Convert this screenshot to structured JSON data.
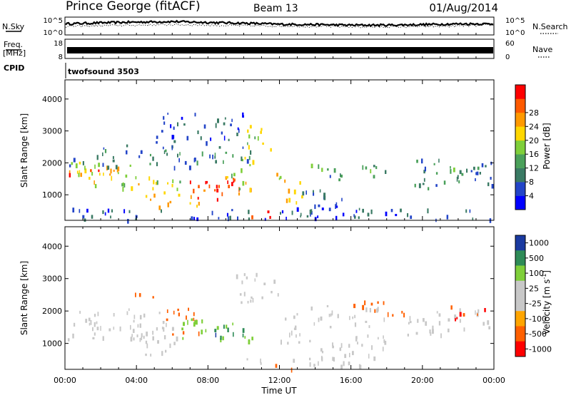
{
  "header": {
    "station": "Prince George (fitACF)",
    "beam": "Beam 13",
    "date": "01/Aug/2014"
  },
  "noise_panel": {
    "left_label": "N.Sky",
    "right_label": "N.Search",
    "tick_top": "10^5",
    "tick_bottom": "10^0",
    "right_tick_top": "10^5",
    "right_tick_bottom": "10^0"
  },
  "freq_panel": {
    "left_label_1": "Freq.",
    "left_label_2": "[MHz]",
    "tick_top": "18",
    "tick_bottom": "8",
    "right_label": "Nave",
    "right_tick_top": "60",
    "right_tick_bottom": "0"
  },
  "cpid_panel": {
    "label": "CPID",
    "program": "twofsound 3503"
  },
  "colors": {
    "power": [
      "#0000ff",
      "#2345c8",
      "#3a7a64",
      "#4aa05a",
      "#7fcf3a",
      "#ffd700",
      "#ff9900",
      "#ff5a00",
      "#ff0000"
    ],
    "velocity": [
      "#ff0000",
      "#ff6000",
      "#ffa500",
      "#c8c8c8",
      "#c8c8c8",
      "#7fcf3a",
      "#2e8b57",
      "#1a3aa0"
    ]
  },
  "chart_data": [
    {
      "type": "heatmap",
      "title": "",
      "xlabel": "Time UT",
      "ylabel": "Slant Range [km]",
      "x_ticks": [
        "00:00",
        "04:00",
        "08:00",
        "12:00",
        "16:00",
        "20:00",
        "00:00"
      ],
      "y_ticks": [
        "1000",
        "2000",
        "3000",
        "4000"
      ],
      "xlim": [
        0,
        24
      ],
      "ylim": [
        200,
        4600
      ],
      "colorbar_label": "Power [dB]",
      "colorbar_ticks": [
        "4",
        "8",
        "12",
        "16",
        "20",
        "24",
        "28"
      ],
      "colorbar_range": [
        0,
        30
      ],
      "regions": [
        {
          "t0": 0.0,
          "t1": 5.0,
          "r0": 1300,
          "r1": 2100,
          "value": 18
        },
        {
          "t0": 0.2,
          "t1": 3.0,
          "r0": 1550,
          "r1": 1850,
          "value": 24
        },
        {
          "t0": 3.0,
          "t1": 6.5,
          "r0": 1100,
          "r1": 1700,
          "value": 16
        },
        {
          "t0": 4.5,
          "t1": 7.5,
          "r0": 600,
          "r1": 1100,
          "value": 22
        },
        {
          "t0": 6.5,
          "t1": 10.5,
          "r0": 900,
          "r1": 1600,
          "value": 26
        },
        {
          "t0": 7.8,
          "t1": 9.5,
          "r0": 1000,
          "r1": 1450,
          "value": 29
        },
        {
          "t0": 9.0,
          "t1": 10.5,
          "r0": 1200,
          "r1": 2200,
          "value": 14
        },
        {
          "t0": 10.3,
          "t1": 12.2,
          "r0": 300,
          "r1": 550,
          "value": 29
        },
        {
          "t0": 11.8,
          "t1": 13.3,
          "r0": 800,
          "r1": 1800,
          "value": 20
        },
        {
          "t0": 13.5,
          "t1": 18.0,
          "r0": 1500,
          "r1": 2000,
          "value": 10
        },
        {
          "t0": 12.5,
          "t1": 16.5,
          "r0": 300,
          "r1": 1200,
          "value": 6
        },
        {
          "t0": 19.5,
          "t1": 24.0,
          "r0": 1200,
          "r1": 2200,
          "value": 8
        },
        {
          "t0": 21.0,
          "t1": 23.0,
          "r0": 1600,
          "r1": 1900,
          "value": 12
        },
        {
          "t0": 0.0,
          "t1": 10.5,
          "r0": 1900,
          "r1": 2600,
          "value": 8
        },
        {
          "t0": 5.0,
          "t1": 10.0,
          "r0": 2600,
          "r1": 3600,
          "value": 5
        },
        {
          "t0": 10.0,
          "t1": 12.0,
          "r0": 2400,
          "r1": 3200,
          "value": 16
        },
        {
          "t0": 0.0,
          "t1": 24.0,
          "r0": 200,
          "r1": 600,
          "value": 6
        }
      ]
    },
    {
      "type": "heatmap",
      "title": "",
      "xlabel": "Time UT",
      "ylabel": "Slant Range [km]",
      "x_ticks": [
        "00:00",
        "04:00",
        "08:00",
        "12:00",
        "16:00",
        "20:00",
        "00:00"
      ],
      "y_ticks": [
        "1000",
        "2000",
        "3000",
        "4000"
      ],
      "xlim": [
        0,
        24
      ],
      "ylim": [
        200,
        4600
      ],
      "colorbar_label": "Velocity [m s-1]",
      "colorbar_label_main": "Velocity [m s",
      "colorbar_label_sup": "-1",
      "colorbar_label_end": "]",
      "colorbar_ticks": [
        "1000",
        "500",
        "100",
        "25",
        "-25",
        "-100",
        "-500",
        "-1000"
      ],
      "regions": [
        {
          "t0": 0.0,
          "t1": 5.5,
          "r0": 1100,
          "r1": 2100,
          "value": 0
        },
        {
          "t0": 3.5,
          "t1": 6.5,
          "r0": 600,
          "r1": 1700,
          "value": 0
        },
        {
          "t0": 5.5,
          "t1": 7.5,
          "r0": 1300,
          "r1": 2200,
          "value": -300
        },
        {
          "t0": 6.5,
          "t1": 10.5,
          "r0": 1100,
          "r1": 1800,
          "value": 300
        },
        {
          "t0": 7.0,
          "t1": 10.0,
          "r0": 1200,
          "r1": 1600,
          "value": 800
        },
        {
          "t0": 9.5,
          "t1": 12.0,
          "r0": 2300,
          "r1": 3300,
          "value": 0
        },
        {
          "t0": 10.0,
          "t1": 11.8,
          "r0": 300,
          "r1": 550,
          "value": 60
        },
        {
          "t0": 11.5,
          "t1": 13.0,
          "r0": 250,
          "r1": 450,
          "value": -200
        },
        {
          "t0": 11.8,
          "t1": 13.3,
          "r0": 1000,
          "r1": 2000,
          "value": 60
        },
        {
          "t0": 12.5,
          "t1": 18.0,
          "r0": 300,
          "r1": 1300,
          "value": 0
        },
        {
          "t0": 13.5,
          "t1": 18.0,
          "r0": 1500,
          "r1": 2200,
          "value": 0
        },
        {
          "t0": 16.0,
          "t1": 19.0,
          "r0": 1900,
          "r1": 2400,
          "value": -200
        },
        {
          "t0": 19.0,
          "t1": 24.0,
          "r0": 1300,
          "r1": 2100,
          "value": 0
        },
        {
          "t0": 21.5,
          "t1": 23.5,
          "r0": 1700,
          "r1": 2200,
          "value": -600
        },
        {
          "t0": 3.5,
          "t1": 5.0,
          "r0": 2300,
          "r1": 2600,
          "value": -200
        }
      ]
    }
  ],
  "noise_series": {
    "xlim": [
      0,
      24
    ],
    "sky_level": [
      0.62,
      0.68,
      0.72,
      0.75,
      0.7,
      0.66,
      0.6,
      0.58,
      0.55,
      0.55,
      0.58,
      0.62,
      0.62
    ],
    "search_level": [
      0.48,
      0.52,
      0.55,
      0.58,
      0.55,
      0.52,
      0.5,
      0.48,
      0.46,
      0.45,
      0.47,
      0.5,
      0.55
    ]
  }
}
